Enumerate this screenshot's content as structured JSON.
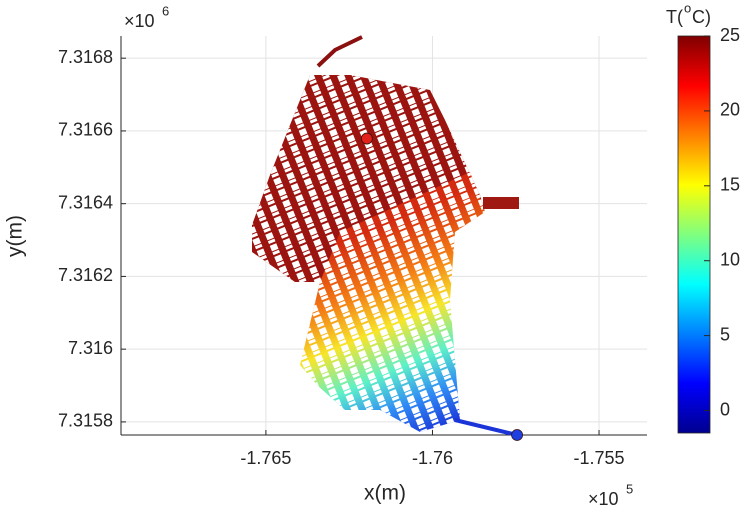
{
  "chart_data": {
    "type": "scatter",
    "xlabel": "x(m)",
    "ylabel": "y(m)",
    "x_exponent": {
      "base": "×10",
      "power": "5"
    },
    "y_exponent": {
      "base": "×10",
      "power": "6"
    },
    "xlim": [
      -1.76935,
      -1.75356
    ],
    "ylim": [
      7.315764,
      7.316861
    ],
    "xticks": [
      -1.765,
      -1.76,
      -1.755
    ],
    "yticks": [
      7.3158,
      7.316,
      7.3162,
      7.3164,
      7.3166,
      7.3168
    ],
    "grid": true,
    "series": [
      {
        "color": "#e3211c",
        "x": [
          -1.76197
        ],
        "y": [
          7.316579
        ]
      },
      {
        "color": "#1f3fe0",
        "x": [
          -1.75746
        ],
        "y": [
          7.315764
        ]
      }
    ],
    "colorbar": {
      "label": {
        "base": "T(",
        "sup": "o",
        "rest": "C)"
      },
      "clim": [
        -1.5,
        25
      ],
      "ticks": [
        0,
        5,
        10,
        15,
        20,
        25
      ]
    }
  }
}
